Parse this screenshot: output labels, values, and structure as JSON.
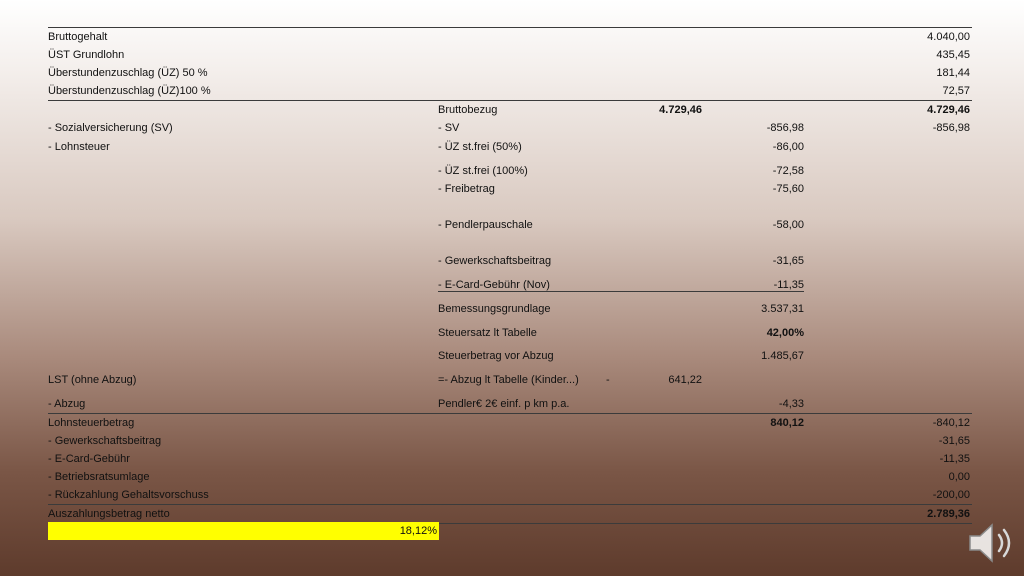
{
  "rows": {
    "brutto": {
      "label": "Bruttogehalt",
      "value": "4.040,00"
    },
    "ust": {
      "label": "ÜST Grundlohn",
      "value": "435,45"
    },
    "uz50": {
      "label": "Überstundenzuschlag (ÜZ) 50 %",
      "value": "181,44"
    },
    "uz100": {
      "label": "Überstundenzuschlag (ÜZ)100 %",
      "value": "72,57"
    },
    "bruttobezug": {
      "label": "Bruttobezug",
      "mid": "4.729,46",
      "value": "4.729,46"
    },
    "sv": {
      "label": "- Sozialversicherung (SV)",
      "sub": "- SV",
      "mid": "-856,98",
      "value": "-856,98"
    },
    "lohnsteuer": {
      "label": "- Lohnsteuer",
      "sub": "- ÜZ st.frei (50%)",
      "mid": "-86,00"
    },
    "uz100frei": {
      "sub": "- ÜZ st.frei (100%)",
      "mid": "-72,58"
    },
    "freibetrag": {
      "sub": "- Freibetrag",
      "mid": "-75,60"
    },
    "pendler": {
      "sub": "- Pendlerpauschale",
      "mid": "-58,00"
    },
    "gewerkschaft_sub": {
      "sub": "- Gewerkschaftsbeitrag",
      "mid": "-31,65"
    },
    "ecard_sub": {
      "sub": "- E-Card-Gebühr (Nov)",
      "mid": "-11,35"
    },
    "bemessung": {
      "sub": "Bemessungsgrundlage",
      "mid": "3.537,31"
    },
    "steuersatz": {
      "sub": "Steuersatz lt Tabelle",
      "mid": "42,00%"
    },
    "steuerbetrag": {
      "sub": "Steuerbetrag vor Abzug",
      "mid": "1.485,67"
    },
    "lst": {
      "label": "LST (ohne Abzug)",
      "sub": "=- Abzug lt Tabelle (Kinder...)",
      "dash": "-",
      "mid": "641,22"
    },
    "abzug": {
      "label": "- Abzug",
      "sub": "Pendler€ 2€ einf. p km p.a.",
      "mid": "-4,33"
    },
    "lohnsteuerbetrag": {
      "label": "Lohnsteuerbetrag",
      "mid": "840,12",
      "value": "-840,12"
    },
    "gewerkschaft": {
      "label": "- Gewerkschaftsbeitrag",
      "value": "-31,65"
    },
    "ecard": {
      "label": "- E-Card-Gebühr",
      "value": "-11,35"
    },
    "betriebsrat": {
      "label": "- Betriebsratsumlage",
      "value": "0,00"
    },
    "rueckzahlung": {
      "label": "- Rückzahlung Gehaltsvorschuss",
      "value": "-200,00"
    },
    "netto": {
      "label": "Auszahlungsbetrag netto",
      "value": "2.789,36"
    }
  },
  "highlight_value": "18,12%",
  "highlight_color": "#ffff00",
  "icons": {
    "speaker": "speaker-icon"
  }
}
